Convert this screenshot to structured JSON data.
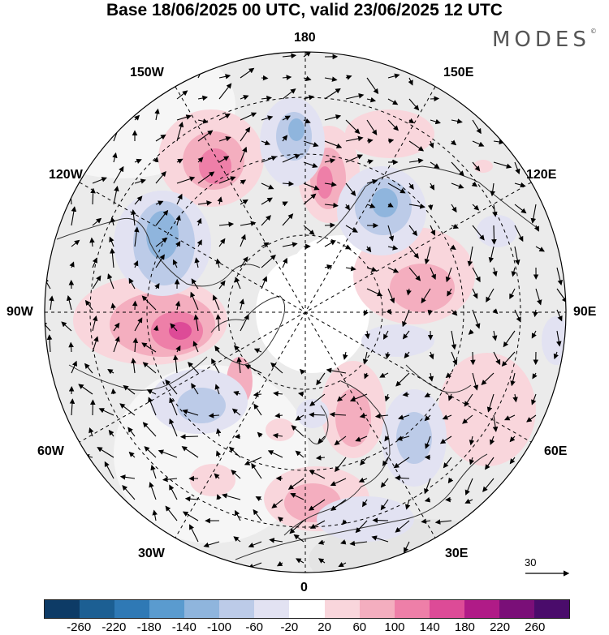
{
  "title": "Base 18/06/2025 00 UTC, valid 23/06/2025 12 UTC",
  "logo": "MODES",
  "logo_mark": "©",
  "map": {
    "projection": "north polar stereographic",
    "longitude_labels": {
      "top": "180",
      "bottom": "0",
      "left": "90W",
      "right": "90E",
      "upper_left_1": "150W",
      "upper_left_2": "120W",
      "upper_right_1": "150E",
      "upper_right_2": "120E",
      "lower_left_1": "60W",
      "lower_left_2": "30W",
      "lower_right_1": "60E",
      "lower_right_2": "30E"
    },
    "reference_vector": "30"
  },
  "colorbar": {
    "ticks": [
      "-260",
      "-220",
      "-180",
      "-140",
      "-100",
      "-60",
      "-20",
      "20",
      "60",
      "100",
      "140",
      "180",
      "220",
      "260"
    ],
    "colors": [
      "#0d3b66",
      "#1c5f93",
      "#2f79b5",
      "#5a9bcf",
      "#8fb5dd",
      "#bccbe8",
      "#e2e2f2",
      "#ffffff",
      "#f9d6dc",
      "#f4aebf",
      "#ee7fa8",
      "#dd4b97",
      "#b01b87",
      "#7a0f78",
      "#4a0c6b"
    ]
  }
}
